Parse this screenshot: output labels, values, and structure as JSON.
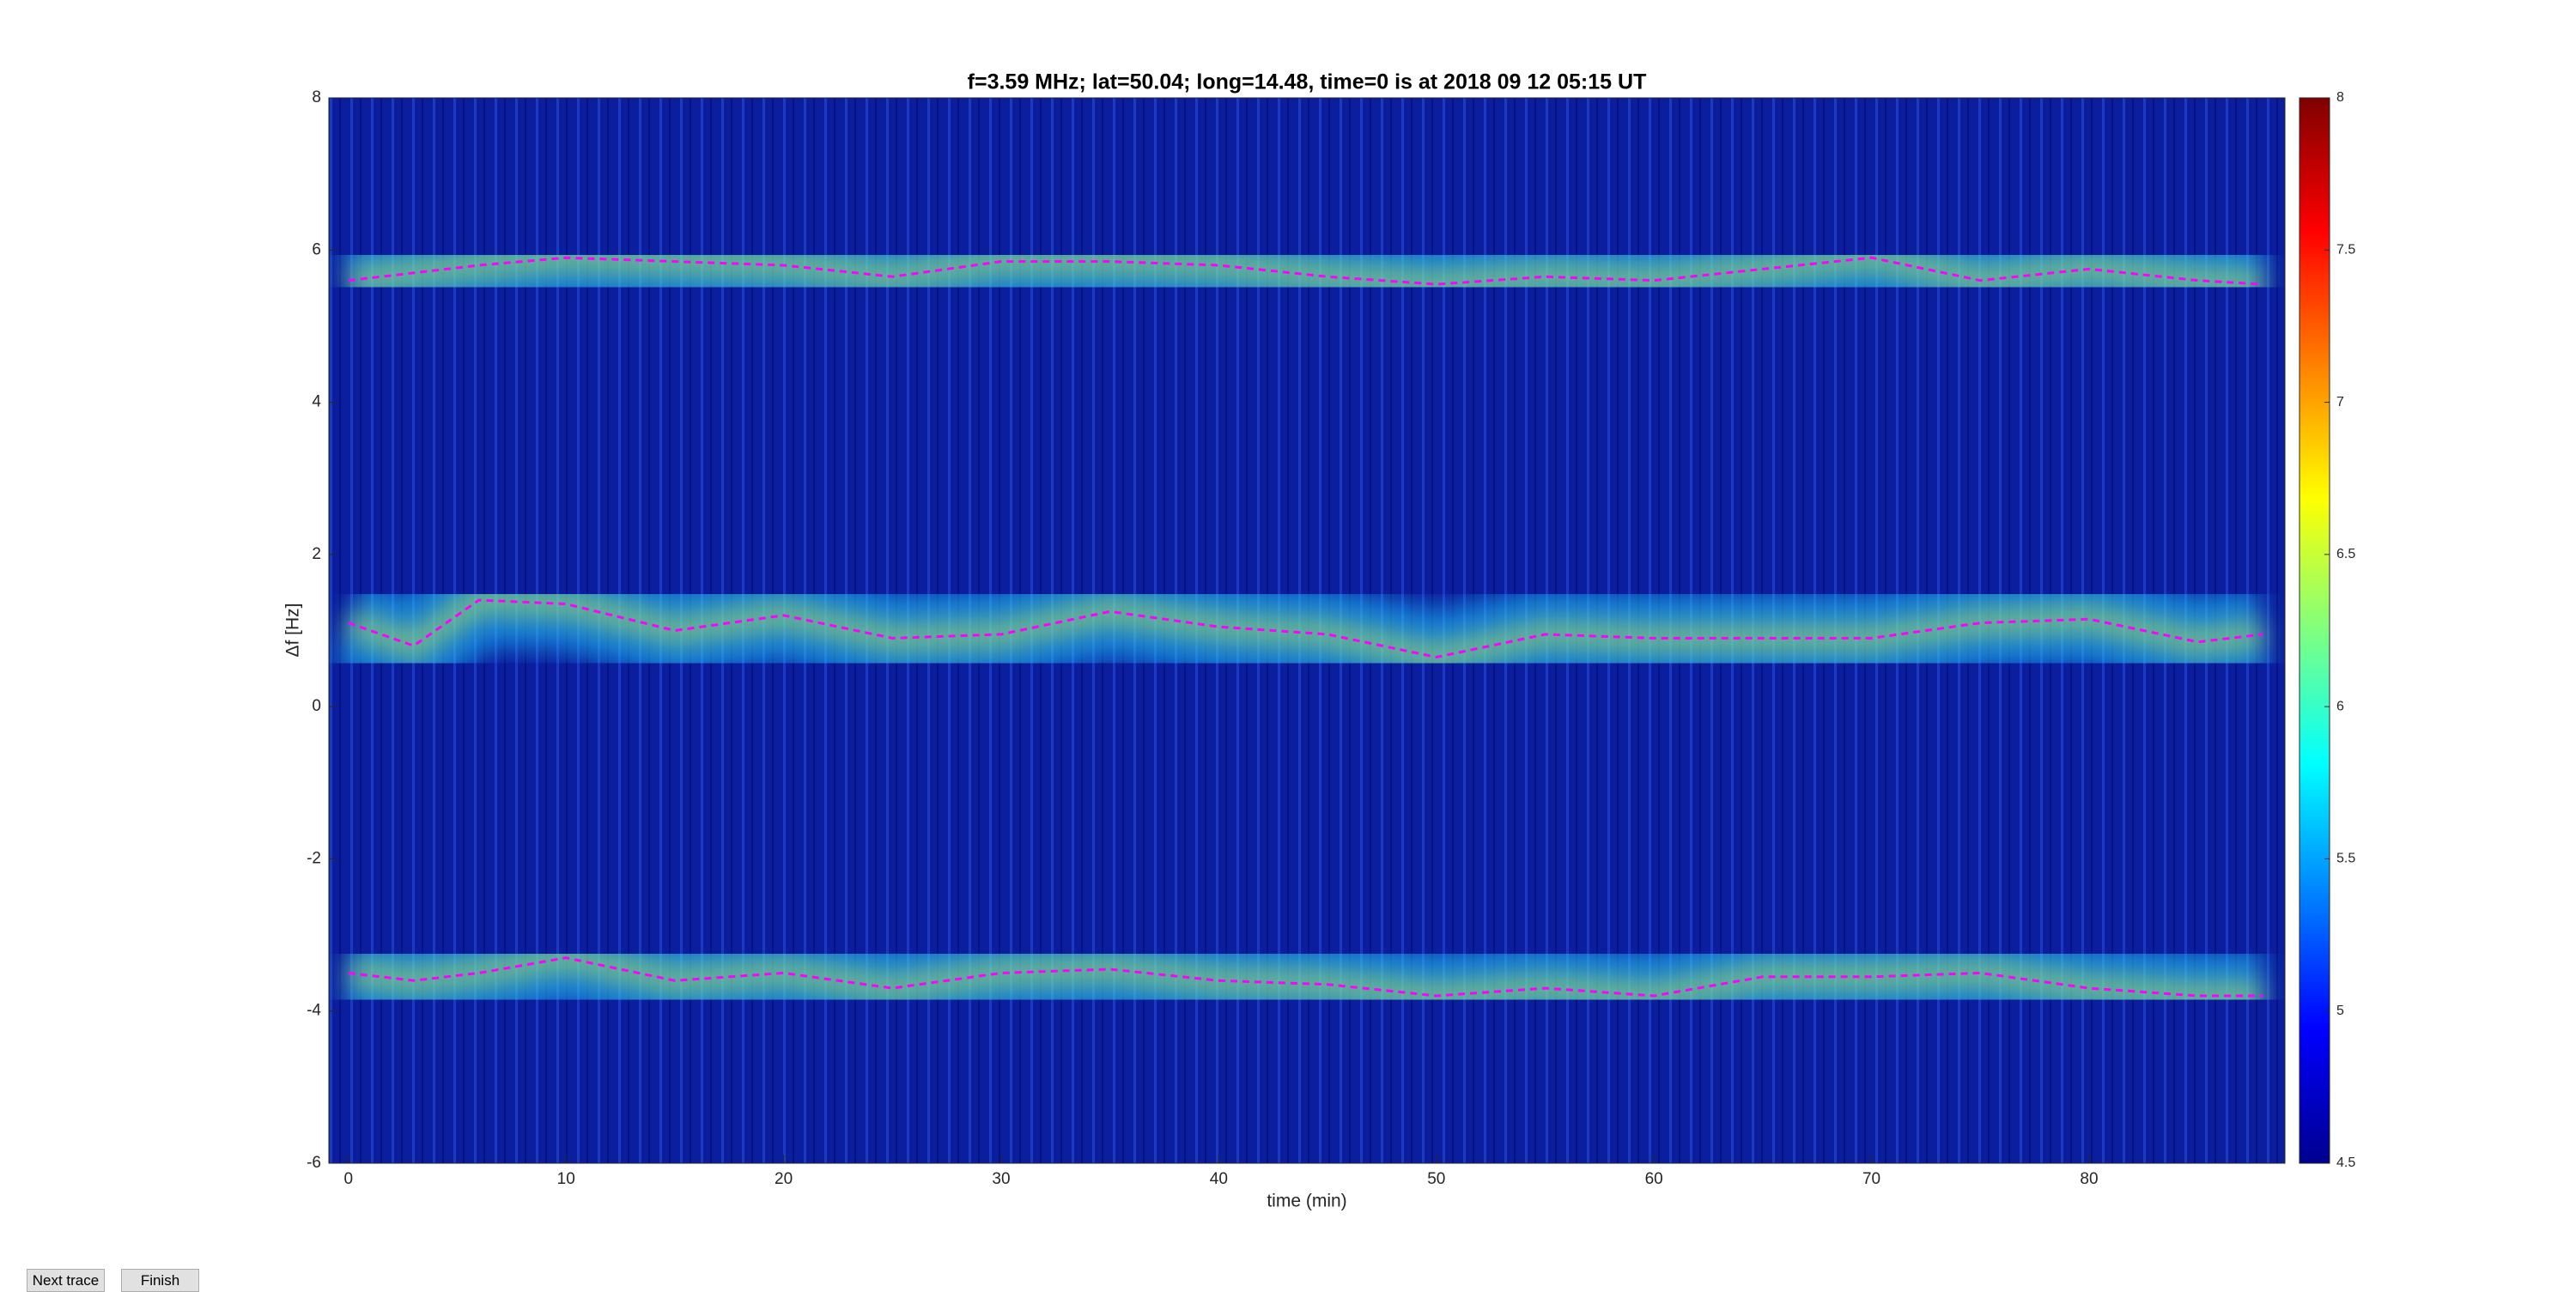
{
  "chart_data": {
    "type": "line",
    "title": "f=3.59 MHz;  lat=50.04; long=14.48, time=0 is at 2018 09 12 05:15 UT",
    "xlabel": "time (min)",
    "ylabel": "Δf [Hz]",
    "x": [
      0,
      3,
      6,
      10,
      15,
      20,
      25,
      30,
      35,
      40,
      45,
      50,
      55,
      60,
      65,
      70,
      75,
      80,
      85,
      88
    ],
    "series": [
      {
        "color": "#ff00ff",
        "values": [
          5.6,
          5.7,
          5.8,
          5.9,
          5.85,
          5.8,
          5.65,
          5.85,
          5.85,
          5.8,
          5.65,
          5.55,
          5.65,
          5.6,
          5.75,
          5.9,
          5.6,
          5.75,
          5.6,
          5.55
        ]
      },
      {
        "color": "#ff00ff",
        "values": [
          1.1,
          0.8,
          1.4,
          1.35,
          1.0,
          1.2,
          0.9,
          0.95,
          1.25,
          1.05,
          0.95,
          0.65,
          0.95,
          0.9,
          0.9,
          0.9,
          1.1,
          1.15,
          0.85,
          0.95
        ]
      },
      {
        "color": "#ff00ff",
        "values": [
          -3.5,
          -3.6,
          -3.5,
          -3.3,
          -3.6,
          -3.5,
          -3.7,
          -3.5,
          -3.45,
          -3.6,
          -3.65,
          -3.8,
          -3.7,
          -3.8,
          -3.55,
          -3.55,
          -3.5,
          -3.7,
          -3.8,
          -3.8
        ]
      }
    ],
    "xlim": [
      -0.9,
      89
    ],
    "xticks": [
      0,
      10,
      20,
      30,
      40,
      50,
      60,
      70,
      80
    ],
    "ylim": [
      -6,
      8
    ],
    "yticks": [
      -6,
      -4,
      -2,
      0,
      2,
      4,
      6,
      8
    ],
    "colormap": "jet",
    "clim": [
      4.5,
      8
    ],
    "cticks": [
      4.5,
      5,
      5.5,
      6,
      6.5,
      7,
      7.5,
      8
    ]
  },
  "buttons": [
    "Next trace",
    "Finish"
  ]
}
